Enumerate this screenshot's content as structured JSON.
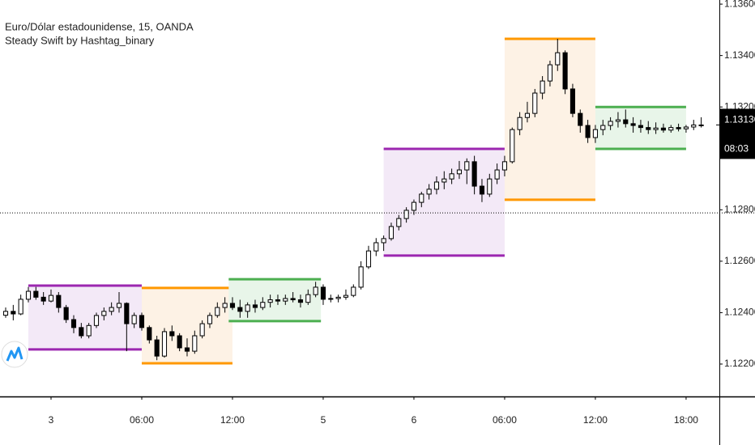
{
  "chart_data": {
    "type": "candlestick",
    "title": "Euro/Dólar estadounidense, 15, OANDA",
    "subtitle": "Steady Swift by Hashtag_binary",
    "x": [
      -6,
      -5,
      -4,
      -3,
      -2,
      -1,
      0,
      1,
      2,
      3,
      4,
      5,
      6,
      7,
      8,
      9,
      10,
      11,
      12,
      13,
      14,
      15,
      16,
      17,
      18,
      19,
      20,
      21,
      22,
      23,
      24,
      25,
      26,
      27,
      28,
      29,
      30,
      31,
      32,
      33,
      34,
      35,
      36,
      37,
      38,
      39,
      40,
      41,
      42,
      43,
      44,
      45,
      46,
      47,
      48,
      49,
      50,
      51,
      52,
      53,
      54,
      55,
      56,
      57,
      58,
      59,
      60,
      61,
      62,
      63,
      64,
      65,
      66,
      67,
      68,
      69,
      70,
      71,
      72,
      73,
      74,
      75,
      76,
      77,
      78,
      79,
      80,
      81,
      82,
      83,
      84,
      85,
      86
    ],
    "open": [
      1.1239,
      1.12405,
      1.12395,
      1.12452,
      1.12483,
      1.1246,
      1.12445,
      1.12467,
      1.1242,
      1.12373,
      1.12342,
      1.1231,
      1.1235,
      1.12389,
      1.12405,
      1.1242,
      1.12436,
      1.12357,
      1.12389,
      1.12342,
      1.12294,
      1.12231,
      1.12326,
      1.1231,
      1.12263,
      1.1225,
      1.1231,
      1.12357,
      1.12389,
      1.1242,
      1.12436,
      1.1242,
      1.12405,
      1.1243,
      1.1242,
      1.1244,
      1.1245,
      1.12445,
      1.12455,
      1.1245,
      1.1244,
      1.1247,
      1.12499,
      1.12452,
      1.12455,
      1.1246,
      1.12467,
      1.12499,
      1.12578,
      1.1264,
      1.12672,
      1.12688,
      1.12735,
      1.12766,
      1.12798,
      1.12829,
      1.12861,
      1.1288,
      1.12908,
      1.1292,
      1.1294,
      1.12955,
      1.12987,
      1.12892,
      1.12861,
      1.1292,
      1.12955,
      1.12987,
      1.13112,
      1.13159,
      1.13175,
      1.13254,
      1.13301,
      1.13364,
      1.13411,
      1.1327,
      1.13175,
      1.13128,
      1.13081,
      1.13112,
      1.13128,
      1.13144,
      1.1315,
      1.13135,
      1.13128,
      1.1312,
      1.13112,
      1.13118,
      1.1311,
      1.1312,
      1.13115,
      1.13122,
      1.1313
    ],
    "high": [
      1.1242,
      1.1243,
      1.1247,
      1.125,
      1.125,
      1.1248,
      1.1249,
      1.1248,
      1.1243,
      1.1239,
      1.1236,
      1.1236,
      1.124,
      1.1242,
      1.1244,
      1.1248,
      1.1244,
      1.124,
      1.124,
      1.1235,
      1.1231,
      1.1234,
      1.1235,
      1.1232,
      1.123,
      1.1233,
      1.1237,
      1.124,
      1.1244,
      1.1246,
      1.1246,
      1.1245,
      1.1244,
      1.1245,
      1.1246,
      1.1247,
      1.1247,
      1.1247,
      1.1248,
      1.1247,
      1.1249,
      1.1252,
      1.1251,
      1.1247,
      1.1247,
      1.1249,
      1.1251,
      1.126,
      1.1266,
      1.1269,
      1.127,
      1.1275,
      1.1278,
      1.1281,
      1.1284,
      1.1287,
      1.129,
      1.1293,
      1.1295,
      1.1296,
      1.1299,
      1.13,
      1.1301,
      1.1292,
      1.1294,
      1.1298,
      1.1301,
      1.1312,
      1.1318,
      1.1322,
      1.1327,
      1.1332,
      1.1338,
      1.13465,
      1.1342,
      1.1329,
      1.1319,
      1.1315,
      1.1313,
      1.1315,
      1.1316,
      1.1318,
      1.1319,
      1.1316,
      1.1315,
      1.13145,
      1.1314,
      1.13135,
      1.1313,
      1.13135,
      1.1313,
      1.1315,
      1.1316
    ],
    "low": [
      1.1238,
      1.1237,
      1.1239,
      1.1244,
      1.1245,
      1.1243,
      1.1244,
      1.124,
      1.1236,
      1.1232,
      1.123,
      1.123,
      1.1234,
      1.1237,
      1.1239,
      1.124,
      1.1225,
      1.1234,
      1.1233,
      1.1228,
      1.12215,
      1.12225,
      1.1229,
      1.1225,
      1.1223,
      1.1224,
      1.123,
      1.1234,
      1.1238,
      1.124,
      1.1241,
      1.1238,
      1.1238,
      1.124,
      1.1241,
      1.1242,
      1.1243,
      1.1243,
      1.1244,
      1.1242,
      1.1243,
      1.1246,
      1.1243,
      1.1244,
      1.1244,
      1.1245,
      1.1246,
      1.1249,
      1.1257,
      1.1262,
      1.1264,
      1.1268,
      1.1272,
      1.1275,
      1.1278,
      1.1281,
      1.1284,
      1.1286,
      1.1288,
      1.129,
      1.1292,
      1.129,
      1.1286,
      1.1283,
      1.1285,
      1.129,
      1.1293,
      1.1298,
      1.1309,
      1.1314,
      1.1316,
      1.1323,
      1.1328,
      1.1334,
      1.1325,
      1.1316,
      1.131,
      1.1306,
      1.1306,
      1.1309,
      1.1311,
      1.1312,
      1.1312,
      1.131,
      1.131,
      1.13095,
      1.13095,
      1.131,
      1.131,
      1.13105,
      1.131,
      1.1311,
      1.1312
    ],
    "close": [
      1.12405,
      1.12395,
      1.12452,
      1.12483,
      1.1246,
      1.12445,
      1.12467,
      1.1242,
      1.12373,
      1.12342,
      1.1231,
      1.1235,
      1.12389,
      1.12405,
      1.1242,
      1.12436,
      1.12357,
      1.12389,
      1.12342,
      1.12294,
      1.12231,
      1.12326,
      1.1231,
      1.12263,
      1.1225,
      1.1231,
      1.12357,
      1.12389,
      1.1242,
      1.12436,
      1.1242,
      1.12405,
      1.1243,
      1.1242,
      1.1244,
      1.1245,
      1.12445,
      1.12455,
      1.1245,
      1.1244,
      1.1247,
      1.12499,
      1.12452,
      1.12455,
      1.1246,
      1.12467,
      1.12499,
      1.12578,
      1.1264,
      1.12672,
      1.12688,
      1.12735,
      1.12766,
      1.12798,
      1.12829,
      1.12861,
      1.1288,
      1.12908,
      1.1292,
      1.1294,
      1.12955,
      1.12987,
      1.12892,
      1.12861,
      1.1292,
      1.12955,
      1.12987,
      1.13112,
      1.13159,
      1.13175,
      1.13254,
      1.13301,
      1.13364,
      1.13411,
      1.1327,
      1.13175,
      1.13128,
      1.13081,
      1.13112,
      1.13128,
      1.13144,
      1.1315,
      1.13135,
      1.13128,
      1.1312,
      1.13112,
      1.13118,
      1.1311,
      1.1312,
      1.13115,
      1.13122,
      1.1313,
      1.1313
    ],
    "up_color": "#ffffff",
    "down_color": "#000000",
    "wick_color": "#000000",
    "zones": [
      {
        "x": [
          -3,
          12
        ],
        "top": 1.12505,
        "bottom": 1.12257,
        "color": "#9c27b0",
        "fill": "#f3e9f7"
      },
      {
        "x": [
          12,
          24
        ],
        "top": 1.12496,
        "bottom": 1.12203,
        "color": "#ff9800",
        "fill": "#fdf2e5"
      },
      {
        "x": [
          23.5,
          35.7
        ],
        "top": 1.1253,
        "bottom": 1.12367,
        "color": "#4caf50",
        "fill": "#e8f5e9"
      },
      {
        "x": [
          44,
          60
        ],
        "top": 1.13037,
        "bottom": 1.12622,
        "color": "#9c27b0",
        "fill": "#f3e9f7"
      },
      {
        "x": [
          60,
          72
        ],
        "top": 1.13465,
        "bottom": 1.12839,
        "color": "#ff9800",
        "fill": "#fdf2e5"
      },
      {
        "x": [
          72,
          84
        ],
        "top": 1.132,
        "bottom": 1.13037,
        "color": "#4caf50",
        "fill": "#e8f5e9"
      }
    ],
    "reference_line": 1.12788,
    "last_price": {
      "value": 1.1313,
      "label": "1.13130"
    },
    "countdown": "08:03",
    "xlim": [
      -6.75,
      88.4
    ],
    "xticks": [
      {
        "value": 0,
        "label": "3"
      },
      {
        "value": 12,
        "label": "06:00"
      },
      {
        "value": 24,
        "label": "12:00"
      },
      {
        "value": 36,
        "label": "5"
      },
      {
        "value": 48,
        "label": "6"
      },
      {
        "value": 60,
        "label": "06:00"
      },
      {
        "value": 72,
        "label": "12:00"
      },
      {
        "value": 84,
        "label": "18:00"
      }
    ],
    "ylim": [
      1.12074,
      1.13616
    ],
    "yticks": [
      {
        "value": 1.122,
        "label": "1.12200"
      },
      {
        "value": 1.124,
        "label": "1.12400"
      },
      {
        "value": 1.126,
        "label": "1.12600"
      },
      {
        "value": 1.128,
        "label": "1.12800"
      },
      {
        "value": 1.132,
        "label": "1.13200"
      },
      {
        "value": 1.134,
        "label": "1.13400"
      },
      {
        "value": 1.136,
        "label": "1.13600"
      }
    ]
  }
}
